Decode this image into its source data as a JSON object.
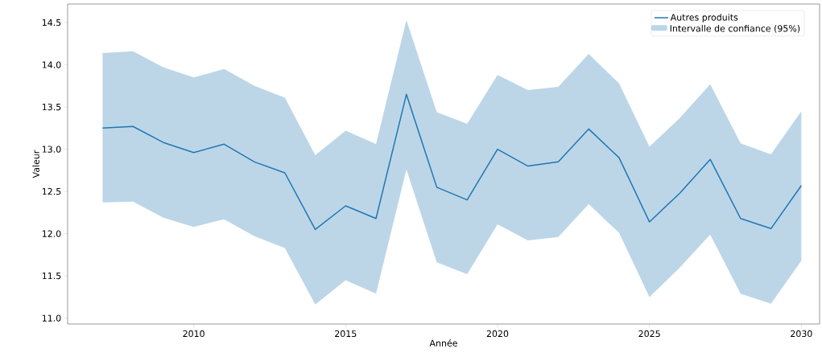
{
  "chart_data": {
    "type": "line",
    "xlabel": "Année",
    "ylabel": "Valeur",
    "x": [
      2007,
      2008,
      2009,
      2010,
      2011,
      2012,
      2013,
      2014,
      2015,
      2016,
      2017,
      2018,
      2019,
      2020,
      2021,
      2022,
      2023,
      2024,
      2025,
      2026,
      2027,
      2028,
      2029,
      2030
    ],
    "series": [
      {
        "name": "Autres produits",
        "type": "line",
        "color": "#1f77b4",
        "values": [
          13.25,
          13.27,
          13.08,
          12.96,
          13.06,
          12.85,
          12.72,
          12.05,
          12.33,
          12.18,
          13.65,
          12.55,
          12.4,
          13.0,
          12.8,
          12.85,
          13.24,
          12.9,
          12.14,
          12.48,
          12.88,
          12.18,
          12.06,
          12.57
        ],
        "upper": [
          14.14,
          14.16,
          13.97,
          13.85,
          13.95,
          13.75,
          13.61,
          12.93,
          13.22,
          13.06,
          14.53,
          13.44,
          13.3,
          13.88,
          13.7,
          13.74,
          14.13,
          13.78,
          13.03,
          13.37,
          13.77,
          13.07,
          12.94,
          13.45
        ],
        "lower": [
          12.37,
          12.38,
          12.19,
          12.08,
          12.17,
          11.97,
          11.83,
          11.16,
          11.45,
          11.29,
          12.76,
          11.66,
          11.52,
          12.11,
          11.92,
          11.96,
          12.35,
          12.01,
          11.25,
          11.6,
          11.99,
          11.29,
          11.17,
          11.68
        ]
      }
    ],
    "annotations": [
      "Intervalle de confiance (95%)"
    ],
    "xlim": [
      2005.85,
      2030.6
    ],
    "ylim": [
      10.93,
      14.72
    ],
    "xticks": [
      2010,
      2015,
      2020,
      2025,
      2030
    ],
    "yticks": [
      {
        "value": 11.0,
        "label": "11.0"
      },
      {
        "value": 11.5,
        "label": "11.5"
      },
      {
        "value": 12.0,
        "label": "12.0"
      },
      {
        "value": 12.5,
        "label": "12.5"
      },
      {
        "value": 13.0,
        "label": "13.0"
      },
      {
        "value": 13.5,
        "label": "13.5"
      },
      {
        "value": 14.0,
        "label": "14.0"
      },
      {
        "value": 14.5,
        "label": "14.5"
      }
    ],
    "legend": "top right",
    "grid": false
  }
}
